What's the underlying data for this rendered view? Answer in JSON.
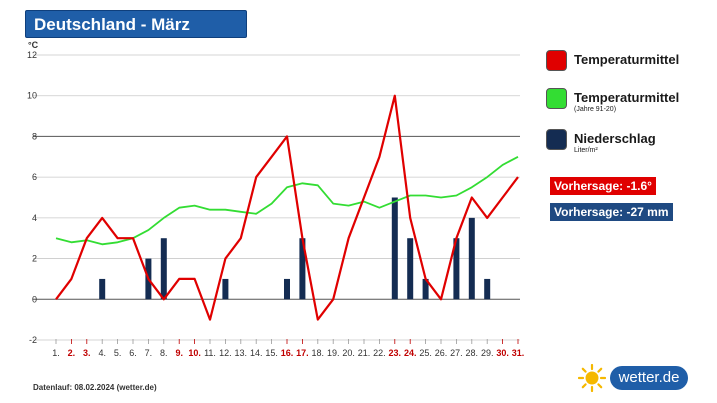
{
  "header": {
    "title": "Deutschland - März"
  },
  "chart_data": {
    "type": "line",
    "unit_label": "°C",
    "ylim": [
      -2,
      12
    ],
    "y_ticks": [
      "12",
      "10",
      "8",
      "6",
      "4",
      "2",
      "0",
      "-2"
    ],
    "x_labels": [
      "1.",
      "2.",
      "3.",
      "4.",
      "5.",
      "6.",
      "7.",
      "8.",
      "9.",
      "10.",
      "11.",
      "12.",
      "13.",
      "14.",
      "15.",
      "16.",
      "17.",
      "18.",
      "19.",
      "20.",
      "21.",
      "22.",
      "23.",
      "24.",
      "25.",
      "26.",
      "27.",
      "28.",
      "29.",
      "30.",
      "31."
    ],
    "weekend_days": [
      2,
      3,
      9,
      10,
      16,
      17,
      23,
      24,
      30,
      31
    ],
    "series": [
      {
        "name": "Temperaturmittel",
        "kind": "line",
        "color": "#e00000",
        "values": [
          0,
          1,
          3,
          4,
          3,
          3,
          1,
          0,
          1,
          1,
          -1,
          2,
          3,
          6,
          7,
          8,
          3,
          -1,
          0,
          3,
          5,
          7,
          10,
          4,
          1,
          0,
          3,
          5,
          4,
          5,
          6
        ]
      },
      {
        "name": "Temperaturmittel",
        "kind": "line",
        "color": "#33dd33",
        "values": [
          3.0,
          2.8,
          2.9,
          2.7,
          2.8,
          3.0,
          3.4,
          4.0,
          4.5,
          4.6,
          4.4,
          4.4,
          4.3,
          4.2,
          4.7,
          5.5,
          5.7,
          5.6,
          4.7,
          4.6,
          4.8,
          4.5,
          4.8,
          5.1,
          5.1,
          5.0,
          5.1,
          5.5,
          6.0,
          6.6,
          7.0
        ]
      },
      {
        "name": "Niederschlag",
        "kind": "bar",
        "color": "#142c52",
        "values": [
          0,
          0,
          0,
          1,
          0,
          0,
          2,
          3,
          0,
          0,
          0,
          1,
          0,
          0,
          0,
          1,
          3,
          0,
          0,
          0,
          0,
          0,
          5,
          3,
          1,
          0,
          3,
          4,
          1,
          0,
          0
        ]
      }
    ],
    "grid": true
  },
  "legend": [
    {
      "label": "Temperaturmittel",
      "sub": "",
      "color": "#e00000"
    },
    {
      "label": "Temperaturmittel",
      "sub": "(Jahre 91-20)",
      "color": "#33dd33"
    },
    {
      "label": "Niederschlag",
      "sub": "Liter/m²",
      "color": "#142c52"
    }
  ],
  "forecasts": [
    {
      "text": "Vorhersage: -1.6°",
      "color": "#e00000"
    },
    {
      "text": "Vorhersage: -27 mm",
      "color": "#1f4a82"
    }
  ],
  "footer": {
    "note": "Datenlauf: 08.02.2024 (wetter.de)"
  },
  "brand": {
    "name": "wetter.de",
    "color": "#1f5ea8",
    "icon": "sun-icon"
  }
}
